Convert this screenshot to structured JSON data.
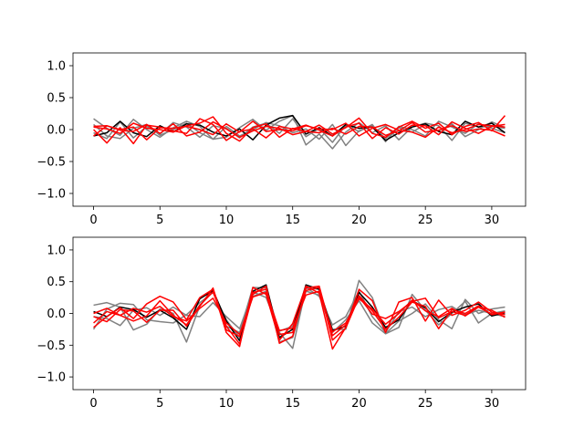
{
  "chart_data": [
    {
      "type": "line",
      "title": "",
      "xlabel": "",
      "ylabel": "",
      "xlim": [
        -1.55,
        32.55
      ],
      "ylim": [
        -1.2,
        1.2
      ],
      "xticks": [
        0,
        5,
        10,
        15,
        20,
        25,
        30
      ],
      "yticks": [
        -1.0,
        -0.5,
        0.0,
        0.5,
        1.0
      ],
      "ytick_labels": [
        "−1.0",
        "−0.5",
        "0.0",
        "0.5",
        "1.0"
      ],
      "grid": false,
      "x": [
        0,
        1,
        2,
        3,
        4,
        5,
        6,
        7,
        8,
        9,
        10,
        11,
        12,
        13,
        14,
        15,
        16,
        17,
        18,
        19,
        20,
        21,
        22,
        23,
        24,
        25,
        26,
        27,
        28,
        29,
        30,
        31
      ],
      "series": [
        {
          "color": "#808080",
          "values": [
            0.17,
            0.02,
            -0.09,
            0.16,
            0.0,
            -0.12,
            0.03,
            0.13,
            0.05,
            -0.15,
            -0.12,
            0.03,
            0.16,
            -0.01,
            0.13,
            0.22,
            -0.24,
            -0.07,
            -0.3,
            -0.04,
            0.11,
            -0.05,
            0.06,
            -0.16,
            0.04,
            0.1,
            0.06,
            -0.17,
            0.1,
            0.04,
            0.05,
            0.02
          ]
        },
        {
          "color": "#808080",
          "values": [
            -0.05,
            -0.14,
            0.12,
            -0.13,
            0.05,
            -0.07,
            0.11,
            0.04,
            -0.12,
            0.06,
            0.02,
            -0.13,
            0.04,
            0.1,
            -0.06,
            0.17,
            -0.11,
            0.02,
            -0.2,
            0.07,
            -0.03,
            0.08,
            -0.19,
            0.05,
            0.0,
            -0.1,
            0.13,
            0.04,
            -0.06,
            0.09,
            0.02,
            -0.05
          ]
        },
        {
          "color": "#808080",
          "values": [
            0.08,
            -0.1,
            -0.14,
            0.02,
            0.08,
            -0.09,
            0.0,
            0.1,
            -0.05,
            -0.15,
            0.05,
            -0.1,
            0.0,
            0.11,
            0.06,
            -0.05,
            0.01,
            -0.15,
            0.08,
            -0.25,
            -0.02,
            0.06,
            -0.14,
            0.03,
            -0.04,
            0.08,
            -0.02,
            0.09,
            -0.11,
            0.0,
            0.12,
            0.03
          ]
        },
        {
          "color": "#000000",
          "values": [
            -0.1,
            -0.05,
            0.13,
            -0.05,
            -0.11,
            0.06,
            -0.04,
            0.09,
            0.07,
            -0.04,
            -0.1,
            0.01,
            -0.16,
            0.07,
            0.18,
            0.22,
            -0.07,
            0.03,
            -0.1,
            0.08,
            0.02,
            0.04,
            -0.17,
            -0.05,
            0.04,
            0.09,
            -0.03,
            -0.08,
            0.13,
            0.04,
            0.1,
            -0.05
          ]
        },
        {
          "color": "#ff0000",
          "values": [
            0.04,
            0.01,
            -0.06,
            0.1,
            0.02,
            0.0,
            -0.04,
            0.06,
            0.1,
            0.2,
            -0.06,
            -0.18,
            0.03,
            0.09,
            -0.12,
            0.02,
            -0.03,
            0.07,
            -0.07,
            0.03,
            0.18,
            -0.06,
            -0.12,
            0.04,
            0.13,
            0.02,
            0.1,
            -0.08,
            0.05,
            0.11,
            -0.02,
            0.22
          ]
        },
        {
          "color": "#ff0000",
          "values": [
            0.0,
            -0.21,
            0.03,
            -0.22,
            0.07,
            0.04,
            -0.02,
            -0.06,
            0.17,
            0.08,
            -0.17,
            -0.03,
            0.01,
            -0.13,
            0.05,
            0.01,
            0.07,
            -0.01,
            -0.1,
            0.04,
            0.1,
            -0.14,
            0.03,
            -0.07,
            0.07,
            0.06,
            -0.08,
            0.12,
            0.02,
            -0.06,
            0.05,
            0.08
          ]
        },
        {
          "color": "#ff0000",
          "values": [
            0.05,
            0.06,
            -0.01,
            -0.03,
            0.08,
            -0.06,
            0.09,
            -0.1,
            -0.04,
            0.12,
            0.01,
            -0.12,
            -0.02,
            0.05,
            0.02,
            -0.08,
            -0.03,
            -0.05,
            0.02,
            -0.07,
            0.05,
            0.04,
            -0.09,
            -0.02,
            0.11,
            -0.04,
            -0.01,
            0.06,
            -0.03,
            0.01,
            -0.01,
            -0.1
          ]
        },
        {
          "color": "#ff0000",
          "values": [
            -0.1,
            0.06,
            0.0,
            0.04,
            -0.16,
            0.03,
            0.02,
            0.05,
            0.0,
            -0.08,
            0.09,
            -0.04,
            0.13,
            -0.03,
            0.0,
            -0.02,
            0.06,
            0.01,
            0.0,
            0.1,
            -0.1,
            0.02,
            0.08,
            -0.01,
            -0.04,
            -0.12,
            0.04,
            -0.05,
            0.0,
            0.08,
            0.06,
            0.04
          ]
        }
      ]
    },
    {
      "type": "line",
      "title": "",
      "xlabel": "",
      "ylabel": "",
      "xlim": [
        -1.55,
        32.55
      ],
      "ylim": [
        -1.2,
        1.2
      ],
      "xticks": [
        0,
        5,
        10,
        15,
        20,
        25,
        30
      ],
      "yticks": [
        -1.0,
        -0.5,
        0.0,
        0.5,
        1.0
      ],
      "ytick_labels": [
        "−1.0",
        "−0.5",
        "0.0",
        "0.5",
        "1.0"
      ],
      "grid": false,
      "x": [
        0,
        1,
        2,
        3,
        4,
        5,
        6,
        7,
        8,
        9,
        10,
        11,
        12,
        13,
        14,
        15,
        16,
        17,
        18,
        19,
        20,
        21,
        22,
        23,
        24,
        25,
        26,
        27,
        28,
        29,
        30,
        31
      ],
      "series": [
        {
          "color": "#808080",
          "values": [
            0.13,
            0.17,
            0.1,
            -0.26,
            -0.17,
            0.07,
            0.0,
            -0.45,
            0.12,
            0.35,
            -0.2,
            -0.3,
            0.41,
            0.4,
            -0.3,
            -0.55,
            0.4,
            0.38,
            -0.25,
            -0.25,
            0.52,
            0.25,
            -0.32,
            -0.12,
            0.0,
            0.15,
            -0.1,
            -0.24,
            0.22,
            0.0,
            0.07,
            0.1
          ]
        },
        {
          "color": "#808080",
          "values": [
            -0.25,
            0.07,
            0.16,
            0.14,
            -0.1,
            -0.13,
            -0.15,
            -0.02,
            0.17,
            0.33,
            -0.1,
            -0.38,
            0.27,
            0.35,
            -0.45,
            -0.38,
            0.35,
            0.29,
            -0.3,
            -0.1,
            0.2,
            -0.15,
            -0.32,
            -0.22,
            0.3,
            0.05,
            -0.18,
            0.0,
            0.19,
            -0.15,
            0.0,
            -0.05
          ]
        },
        {
          "color": "#808080",
          "values": [
            -0.05,
            -0.08,
            -0.19,
            0.05,
            0.09,
            -0.03,
            0.1,
            -0.03,
            -0.05,
            0.17,
            -0.05,
            -0.24,
            0.34,
            0.25,
            -0.28,
            -0.2,
            0.41,
            0.27,
            -0.18,
            -0.05,
            0.35,
            -0.05,
            -0.3,
            0.03,
            0.1,
            -0.05,
            0.06,
            0.11,
            -0.02,
            0.05,
            0.0,
            0.04
          ]
        },
        {
          "color": "#000000",
          "values": [
            0.03,
            -0.05,
            0.1,
            0.06,
            -0.06,
            0.05,
            -0.07,
            -0.25,
            0.23,
            0.36,
            -0.12,
            -0.43,
            0.35,
            0.45,
            -0.38,
            -0.25,
            0.45,
            0.38,
            -0.27,
            -0.2,
            0.33,
            0.1,
            -0.22,
            -0.1,
            0.2,
            0.09,
            -0.13,
            0.02,
            0.1,
            0.15,
            -0.04,
            0.01
          ]
        },
        {
          "color": "#ff0000",
          "values": [
            -0.22,
            -0.05,
            0.09,
            -0.08,
            0.15,
            0.27,
            0.18,
            -0.1,
            0.25,
            0.38,
            -0.3,
            -0.52,
            0.41,
            0.3,
            -0.42,
            -0.16,
            0.43,
            0.32,
            -0.56,
            -0.22,
            0.38,
            0.2,
            -0.3,
            0.18,
            0.25,
            -0.12,
            0.21,
            -0.03,
            0.05,
            0.18,
            0.02,
            -0.02
          ]
        },
        {
          "color": "#ff0000",
          "values": [
            0.0,
            0.08,
            -0.03,
            -0.12,
            -0.04,
            0.2,
            -0.03,
            -0.18,
            0.13,
            0.34,
            -0.2,
            -0.48,
            0.3,
            0.43,
            -0.47,
            -0.36,
            0.4,
            0.43,
            -0.35,
            -0.18,
            0.28,
            0.04,
            -0.25,
            -0.06,
            0.18,
            0.11,
            -0.24,
            0.06,
            0.0,
            0.12,
            -0.02,
            0.02
          ]
        },
        {
          "color": "#ff0000",
          "values": [
            -0.05,
            -0.13,
            0.06,
            0.04,
            -0.14,
            0.05,
            0.05,
            -0.2,
            0.11,
            0.4,
            -0.26,
            -0.36,
            0.33,
            0.38,
            -0.33,
            -0.3,
            0.36,
            0.41,
            -0.42,
            -0.23,
            0.26,
            -0.01,
            -0.08,
            0.03,
            0.19,
            0.24,
            -0.07,
            0.03,
            -0.03,
            0.11,
            0.05,
            -0.06
          ]
        },
        {
          "color": "#ff0000",
          "values": [
            -0.15,
            0.03,
            -0.03,
            0.08,
            0.02,
            0.11,
            -0.05,
            -0.12,
            0.08,
            0.24,
            -0.15,
            -0.33,
            0.26,
            0.33,
            -0.27,
            -0.23,
            0.29,
            0.35,
            -0.29,
            -0.15,
            0.23,
            0.07,
            -0.17,
            0.0,
            0.21,
            0.04,
            -0.05,
            0.08,
            -0.04,
            0.1,
            -0.01,
            0.02
          ]
        }
      ]
    }
  ]
}
